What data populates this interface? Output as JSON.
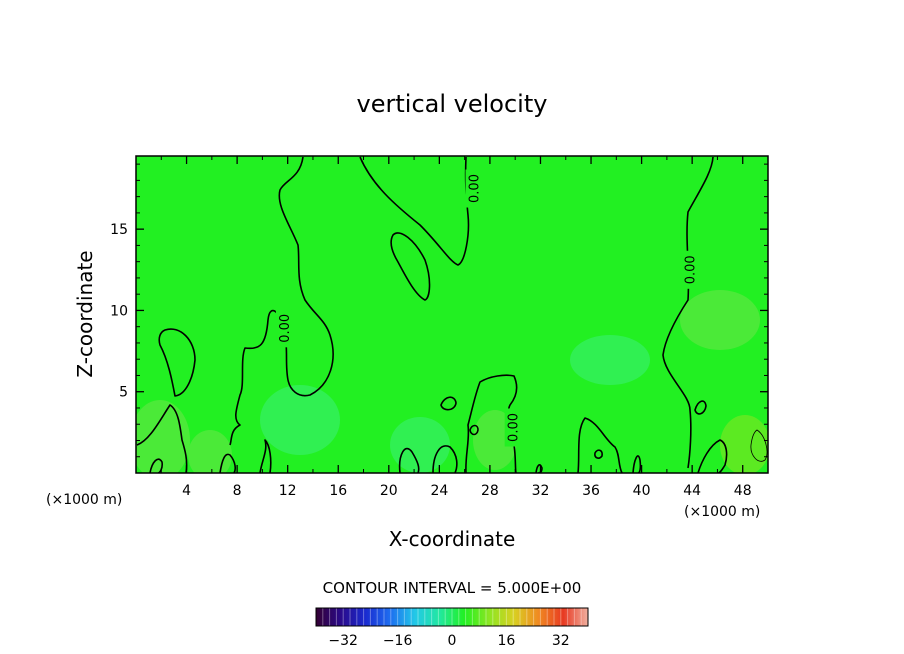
{
  "chart_data": {
    "type": "heatmap",
    "title": "vertical velocity",
    "xlabel": "X-coordinate",
    "ylabel": "Z-coordinate",
    "x_unit_left": "(×1000 m)",
    "x_unit_right": "(×1000 m)",
    "xlim": [
      0,
      50
    ],
    "ylim": [
      0,
      19.5
    ],
    "x_ticks": [
      4,
      8,
      12,
      16,
      20,
      24,
      28,
      32,
      36,
      40,
      44,
      48
    ],
    "y_ticks": [
      5,
      10,
      15
    ],
    "field_base_color": "#22f022",
    "contour_interval_text": "CONTOUR INTERVAL = 5.000E+00",
    "contour_labels": [
      {
        "x": 26.7,
        "y": 17.5,
        "text": "0.00"
      },
      {
        "x": 11.7,
        "y": 8.9,
        "text": "0.00"
      },
      {
        "x": 43.8,
        "y": 12.5,
        "text": "0.00"
      },
      {
        "x": 29.8,
        "y": 2.8,
        "text": "0.00"
      }
    ],
    "colorbar": {
      "range": [
        -40,
        40
      ],
      "ticks": [
        -32,
        -16,
        0,
        16,
        32
      ],
      "tick_labels": [
        "−32",
        "−16",
        "0",
        "16",
        "32"
      ],
      "stops": [
        "#330033",
        "#2a0a8a",
        "#1a2bd0",
        "#1e6ef0",
        "#22c8e8",
        "#22e8a0",
        "#22f022",
        "#8ce622",
        "#d8d022",
        "#f08a22",
        "#e83a22",
        "#f0b0a0"
      ]
    }
  }
}
